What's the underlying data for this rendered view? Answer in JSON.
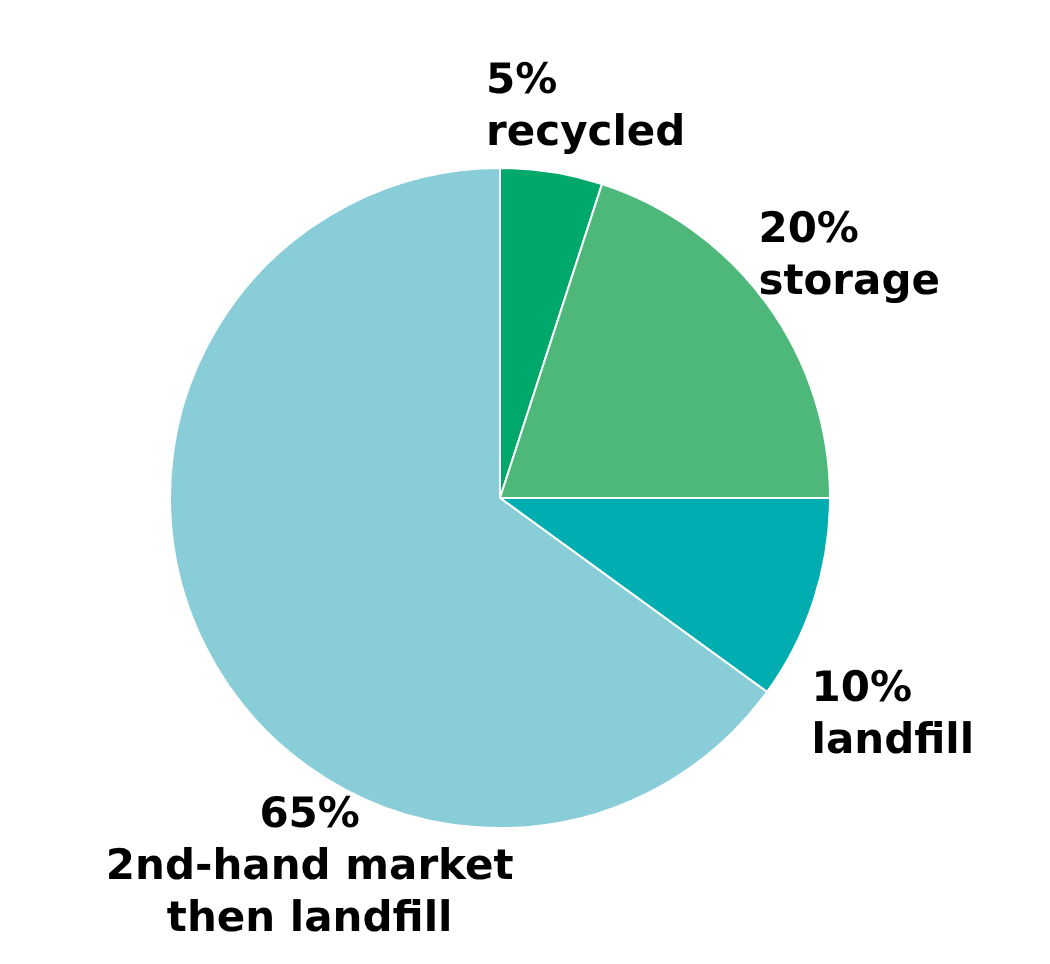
{
  "chart_data": {
    "type": "pie",
    "categories": [
      "recycled",
      "storage",
      "landfill",
      "2nd-hand market\nthen landfill"
    ],
    "values": [
      5,
      20,
      10,
      65
    ],
    "value_labels": [
      "5%",
      "20%",
      "10%",
      "65%"
    ],
    "colors": [
      "#00a86b",
      "#4db87a",
      "#00adb0",
      "#88cdd8"
    ]
  }
}
